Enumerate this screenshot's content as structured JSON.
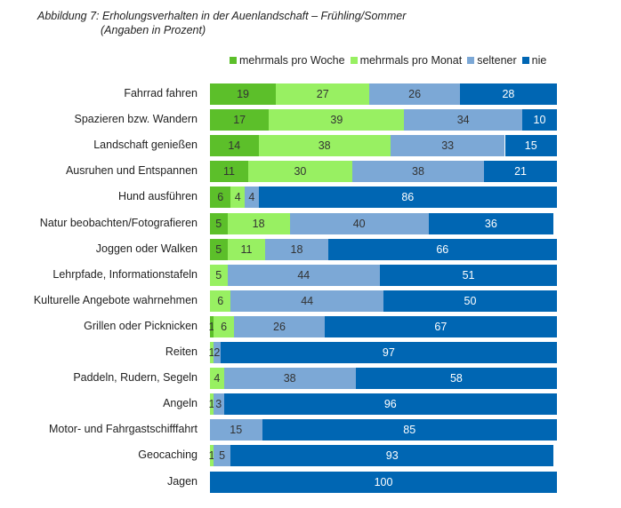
{
  "chart_data": {
    "type": "bar",
    "orientation": "horizontal",
    "stacked": true,
    "title": "Abbildung 7: Erholungsverhalten in der Auenlandschaft – Frühling/Sommer",
    "subtitle": "(Angaben in Prozent)",
    "xlim": [
      0,
      100
    ],
    "grid": false,
    "legend_position": "top",
    "categories": [
      "Fahrrad fahren",
      "Spazieren bzw. Wandern",
      "Landschaft genießen",
      "Ausruhen und Entspannen",
      "Hund ausführen",
      "Natur beobachten/Fotografieren",
      "Joggen oder Walken",
      "Lehrpfade, Informationstafeln",
      "Kulturelle Angebote wahrnehmen",
      "Grillen oder Picknicken",
      "Reiten",
      "Paddeln, Rudern, Segeln",
      "Angeln",
      "Motor- und Fahrgastschifffahrt",
      "Geocaching",
      "Jagen"
    ],
    "series": [
      {
        "name": "mehrmals pro Woche",
        "color": "#5cbf2a",
        "values": [
          19,
          17,
          14,
          11,
          6,
          5,
          5,
          0,
          0,
          1,
          0,
          0,
          0,
          0,
          0,
          0
        ]
      },
      {
        "name": "mehrmals pro Monat",
        "color": "#98f062",
        "values": [
          27,
          39,
          38,
          30,
          4,
          18,
          11,
          5,
          6,
          6,
          1,
          4,
          1,
          0,
          1,
          0
        ]
      },
      {
        "name": "seltener",
        "color": "#7ca8d6",
        "values": [
          26,
          34,
          33,
          38,
          4,
          40,
          18,
          44,
          44,
          26,
          2,
          38,
          3,
          15,
          5,
          0
        ]
      },
      {
        "name": "nie",
        "color": "#0066b3",
        "values": [
          28,
          10,
          15,
          21,
          86,
          36,
          66,
          51,
          50,
          67,
          97,
          58,
          96,
          85,
          93,
          100
        ]
      }
    ]
  }
}
